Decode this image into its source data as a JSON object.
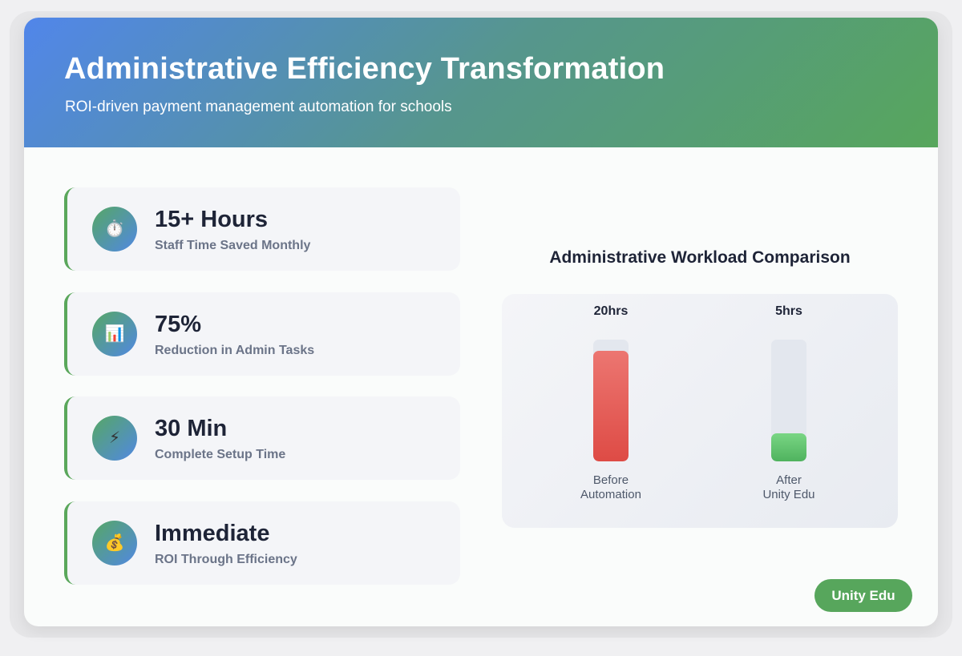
{
  "header": {
    "title": "Administrative Efficiency Transformation",
    "subtitle": "ROI-driven payment management automation for schools"
  },
  "metrics": [
    {
      "icon": "stopwatch-icon",
      "glyph": "⏱️",
      "value": "15+ Hours",
      "label": "Staff Time Saved Monthly"
    },
    {
      "icon": "bar-chart-icon",
      "glyph": "📊",
      "value": "75%",
      "label": "Reduction in Admin Tasks"
    },
    {
      "icon": "lightning-icon",
      "glyph": "⚡",
      "value": "30 Min",
      "label": "Complete Setup Time"
    },
    {
      "icon": "money-bag-icon",
      "glyph": "💰",
      "value": "Immediate",
      "label": "ROI Through Efficiency"
    }
  ],
  "chart_data": {
    "type": "bar",
    "title": "Administrative Workload Comparison",
    "categories": [
      "Before\nAutomation",
      "After\nUnity Edu"
    ],
    "values": [
      20,
      5
    ],
    "value_labels": [
      "20hrs",
      "5hrs"
    ],
    "unit": "hrs",
    "ylim": [
      0,
      22
    ],
    "colors": [
      "#e45b55",
      "#5bc26a"
    ]
  },
  "brand": {
    "label": "Unity Edu"
  }
}
